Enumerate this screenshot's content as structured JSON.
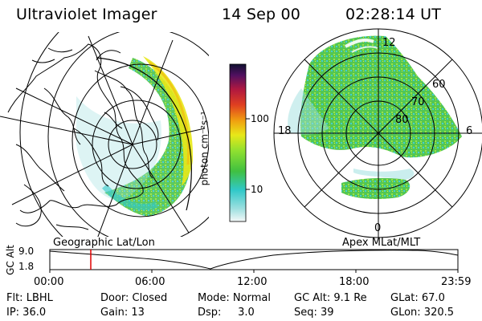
{
  "header": {
    "title": "Ultraviolet Imager",
    "date": "14 Sep 00",
    "time": "02:28:14 UT"
  },
  "colorbar": {
    "unit_label": "photon cm⁻²s⁻¹",
    "ticks": [
      "100",
      "10"
    ],
    "scale": "log",
    "colors": [
      "#e8f4f4",
      "#9fe0e0",
      "#30c8c8",
      "#40c040",
      "#90e030",
      "#e8e818",
      "#f0a010",
      "#e04020",
      "#b01840",
      "#501060",
      "#101030"
    ]
  },
  "left_map": {
    "label": "Geographic Lat/Lon"
  },
  "right_map": {
    "label": "Apex  MLat/MLT",
    "mlt_labels": {
      "top": "12",
      "left": "18",
      "right": "6",
      "bottom": "0"
    },
    "lat_labels": [
      "60",
      "70",
      "80"
    ]
  },
  "altitude_plot": {
    "ylabel": "GC Alt",
    "y_ticks": [
      "9.0",
      "1.8"
    ],
    "x_ticks": [
      "00:00",
      "06:00",
      "12:00",
      "18:00",
      "23:59"
    ],
    "marker_color": "#e00000"
  },
  "status": {
    "flt": "Flt: LBHL",
    "door": "Door: Closed",
    "mode": "Mode: Normal",
    "gc_alt": "GC Alt: 9.1 Re",
    "glat": "GLat:  67.0",
    "ip": "IP: 36.0",
    "gain": "Gain: 13",
    "dsp": "Dsp:     3.0",
    "seq": "Seq: 39",
    "glon": "GLon: 320.5"
  }
}
